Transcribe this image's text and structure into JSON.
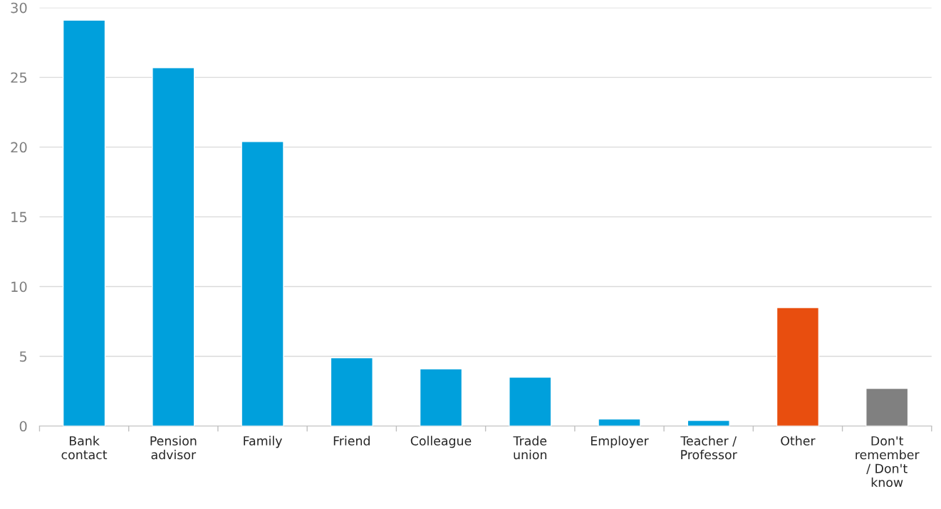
{
  "chart_data": {
    "type": "bar",
    "categories": [
      "Bank\ncontact",
      "Pension\nadvisor",
      "Family",
      "Friend",
      "Colleague",
      "Trade\nunion",
      "Employer",
      "Teacher /\nProfessor",
      "Other",
      "Don't\nremember\n/ Don't\nknow"
    ],
    "values": [
      29.1,
      25.7,
      20.4,
      4.9,
      4.1,
      3.5,
      0.5,
      0.4,
      8.5,
      2.7
    ],
    "colors": [
      "#00a0dc",
      "#00a0dc",
      "#00a0dc",
      "#00a0dc",
      "#00a0dc",
      "#00a0dc",
      "#00a0dc",
      "#00a0dc",
      "#e84e0f",
      "#808080"
    ],
    "ylim": [
      0,
      30
    ],
    "yticks": [
      0,
      5,
      10,
      15,
      20,
      25,
      30
    ],
    "grid": "y",
    "legend": false
  }
}
